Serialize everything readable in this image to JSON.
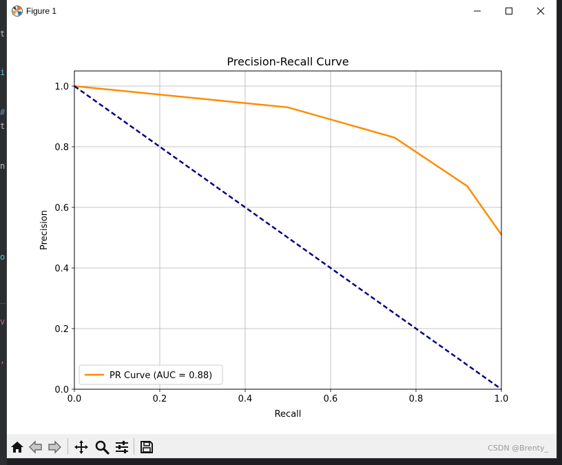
{
  "window": {
    "title": "Figure 1"
  },
  "toolbar": {
    "buttons": [
      {
        "name": "home-icon"
      },
      {
        "name": "back-arrow-icon"
      },
      {
        "name": "forward-arrow-icon"
      },
      {
        "name": "pan-icon"
      },
      {
        "name": "zoom-icon"
      },
      {
        "name": "configure-subplots-icon"
      },
      {
        "name": "save-icon"
      }
    ]
  },
  "watermark": "CSDN @Brenty_",
  "colors": {
    "pr_curve": "#ff8c00",
    "baseline": "#000080",
    "grid": "#b0b0b0"
  },
  "chart_data": {
    "type": "line",
    "title": "Precision-Recall Curve",
    "xlabel": "Recall",
    "ylabel": "Precision",
    "xlim": [
      0.0,
      1.0
    ],
    "ylim": [
      0.0,
      1.05
    ],
    "xticks": [
      "0.0",
      "0.2",
      "0.4",
      "0.6",
      "0.8",
      "1.0"
    ],
    "yticks": [
      "0.0",
      "0.2",
      "0.4",
      "0.6",
      "0.8",
      "1.0"
    ],
    "grid": true,
    "legend_position": "lower-left",
    "series": [
      {
        "name": "PR Curve (AUC = 0.88)",
        "style": "solid",
        "x": [
          0.0,
          0.5,
          0.75,
          0.92,
          1.0
        ],
        "y": [
          1.0,
          0.93,
          0.83,
          0.67,
          0.51
        ]
      },
      {
        "style": "dashed",
        "x": [
          0.0,
          1.0
        ],
        "y": [
          1.0,
          0.0
        ]
      }
    ]
  }
}
